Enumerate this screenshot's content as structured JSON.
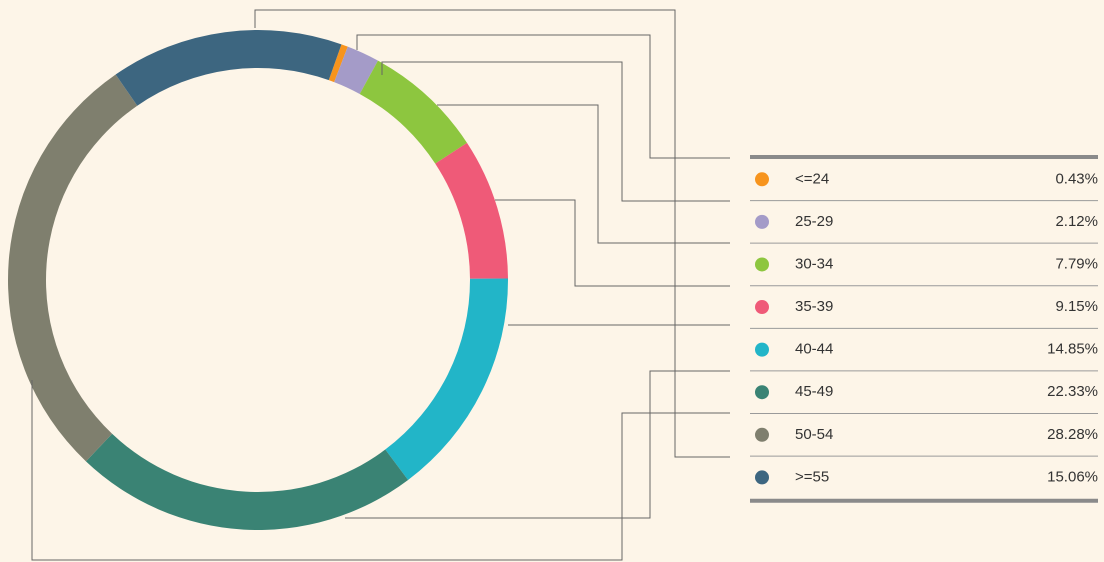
{
  "chart_data": {
    "type": "donut",
    "categories": [
      "<=24",
      "25-29",
      "30-34",
      "35-39",
      "40-44",
      "45-49",
      "50-54",
      ">=55"
    ],
    "values": [
      0.43,
      2.12,
      7.79,
      9.15,
      14.85,
      22.33,
      28.28,
      15.06
    ],
    "value_labels": [
      "0.43%",
      "2.12%",
      "7.79%",
      "9.15%",
      "14.85%",
      "22.33%",
      "28.28%",
      "15.06%"
    ],
    "colors": [
      "#f7941d",
      "#a49bc8",
      "#8dc63f",
      "#ef5a78",
      "#22b5c8",
      "#3a8374",
      "#7f7f6e",
      "#3d6680"
    ]
  }
}
